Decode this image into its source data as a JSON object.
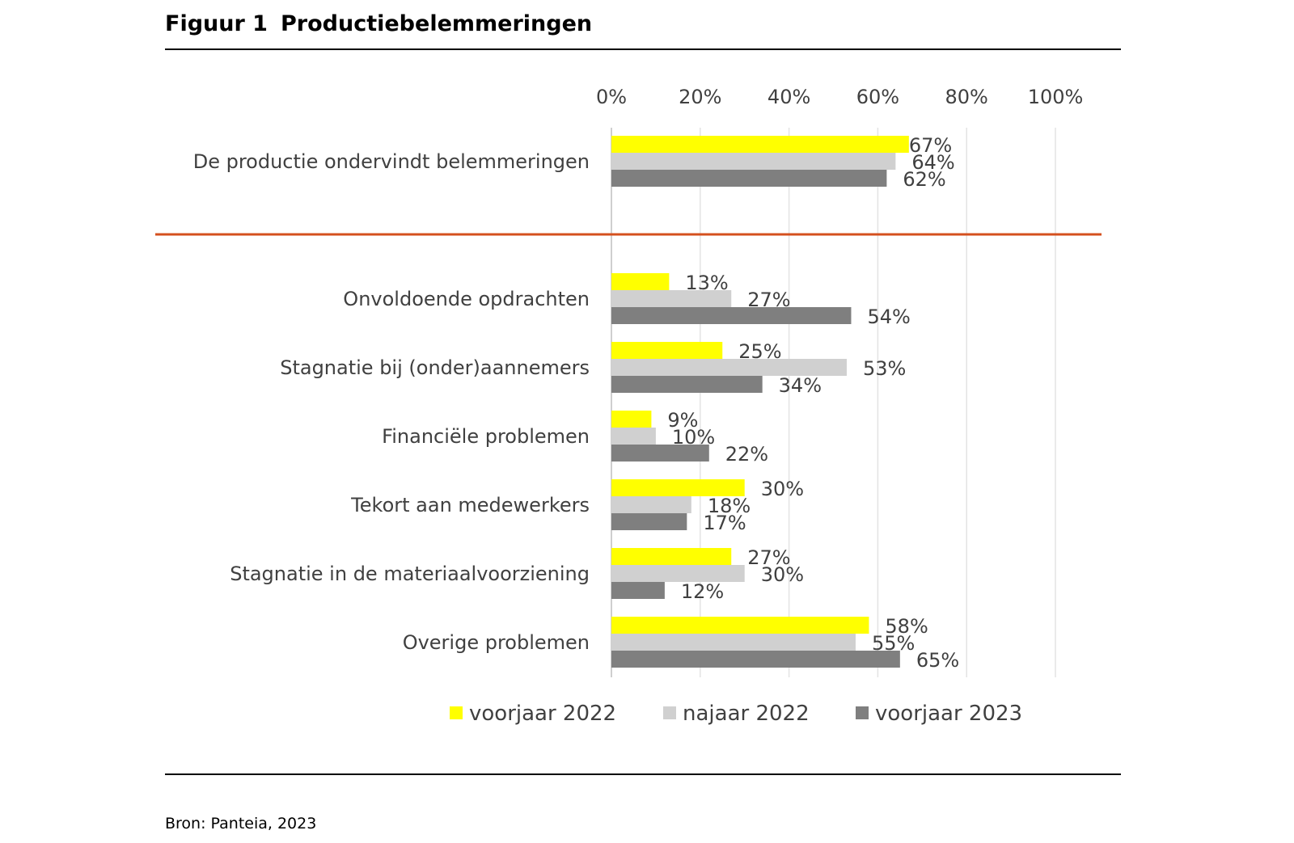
{
  "figure": {
    "number": "Figuur 1",
    "title": "Productiebelemmeringen",
    "source": "Bron: Panteia, 2023"
  },
  "chart_data": {
    "type": "bar",
    "orientation": "horizontal",
    "title": "Productiebelemmeringen",
    "xlim": [
      0,
      100
    ],
    "x_ticks": [
      "0%",
      "20%",
      "40%",
      "60%",
      "80%",
      "100%"
    ],
    "grid": true,
    "legend_position": "bottom",
    "categories": [
      "De productie ondervindt belemmeringen",
      "Onvoldoende opdrachten",
      "Stagnatie bij (onder)aannemers",
      "Financiële problemen",
      "Tekort aan medewerkers",
      "Stagnatie in de materiaalvoorziening",
      "Overige problemen"
    ],
    "series": [
      {
        "name": "voorjaar 2022",
        "color": "#FFFF00",
        "values": [
          67,
          13,
          25,
          9,
          30,
          27,
          58
        ]
      },
      {
        "name": "najaar 2022",
        "color": "#D0D0D0",
        "values": [
          64,
          27,
          53,
          10,
          18,
          30,
          55
        ]
      },
      {
        "name": "voorjaar 2023",
        "color": "#7F7F7F",
        "values": [
          62,
          54,
          34,
          22,
          17,
          12,
          65
        ]
      }
    ],
    "separator_color": "#D4501E"
  }
}
